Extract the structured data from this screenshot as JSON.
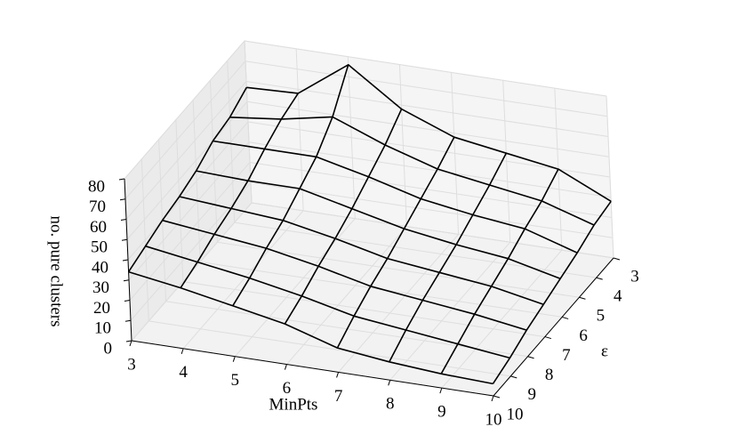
{
  "chart_data": {
    "type": "surface",
    "x_label": "MinPts",
    "y_label": "ε",
    "z_label": "no. pure clusters",
    "x": [
      3,
      4,
      5,
      6,
      7,
      8,
      9,
      10
    ],
    "y": [
      3,
      4,
      5,
      6,
      7,
      8,
      9,
      10
    ],
    "z": [
      [
        57,
        58,
        76,
        58,
        48,
        44,
        40,
        28
      ],
      [
        52,
        55,
        60,
        50,
        42,
        38,
        34,
        26
      ],
      [
        50,
        50,
        50,
        44,
        37,
        33,
        30,
        22
      ],
      [
        45,
        44,
        44,
        38,
        32,
        28,
        25,
        19
      ],
      [
        42,
        40,
        38,
        33,
        27,
        24,
        21,
        16
      ],
      [
        40,
        37,
        34,
        29,
        23,
        20,
        17,
        13
      ],
      [
        37,
        33,
        29,
        24,
        18,
        15,
        12,
        9
      ],
      [
        34,
        30,
        25,
        20,
        12,
        9,
        7,
        6
      ]
    ],
    "color": "#000000",
    "xlim": [
      3,
      10
    ],
    "ylim": [
      3,
      10
    ],
    "zlim": [
      0,
      80
    ],
    "xticks": [
      3,
      4,
      5,
      6,
      7,
      8,
      9,
      10
    ],
    "yticks": [
      3,
      4,
      5,
      6,
      7,
      8,
      9,
      10
    ],
    "zticks": [
      0,
      10,
      20,
      30,
      40,
      50,
      60,
      70,
      80
    ],
    "grid": true
  }
}
